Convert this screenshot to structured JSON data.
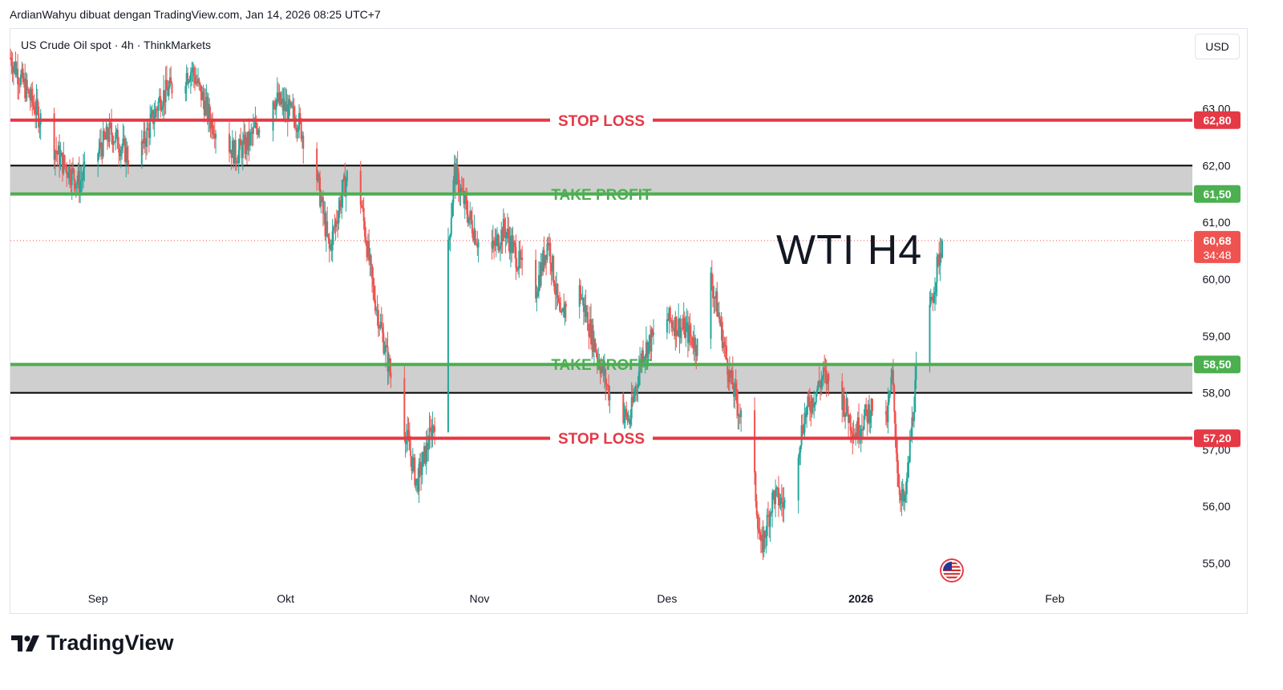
{
  "header": {
    "caption": "ArdianWahyu dibuat dengan TradingView.com, Jan 14, 2026 08:25 UTC+7"
  },
  "chart_header": {
    "symbol": "US Crude Oil spot · 4h · ThinkMarkets",
    "currency": "USD"
  },
  "annotation": {
    "title": "WTI H4"
  },
  "footer": {
    "brand": "TradingView"
  },
  "colors": {
    "up": "#26a69a",
    "down": "#ef5350",
    "stop_loss": "#e53945",
    "take_profit": "#4caf50",
    "zone_fill": "#cfcfcf",
    "zone_border": "#000000"
  },
  "chart_data": {
    "type": "candlestick",
    "xlabels": [
      {
        "label": "Sep",
        "date": "2025-09-01"
      },
      {
        "label": "Okt",
        "date": "2025-10-01"
      },
      {
        "label": "Nov",
        "date": "2025-11-01"
      },
      {
        "label": "Des",
        "date": "2025-12-01"
      },
      {
        "label": "2026",
        "date": "2026-01-01",
        "bold": true
      },
      {
        "label": "Feb",
        "date": "2026-02-01"
      }
    ],
    "yticks": [
      "55,00",
      "56,00",
      "57,00",
      "58,00",
      "59,00",
      "60,00",
      "61,00",
      "62,00",
      "63,00"
    ],
    "ylim": [
      54.55,
      64.0
    ],
    "date_range": [
      "2025-08-18",
      "2026-02-23"
    ],
    "last_price": 60.68,
    "last_price_label": "60,68",
    "countdown": "34:48",
    "grid": false,
    "levels": [
      {
        "name": "STOP LOSS",
        "price": 62.8,
        "label": "62,80",
        "kind": "stop_loss"
      },
      {
        "name": "TAKE PROFIT",
        "price": 61.5,
        "label": "61,50",
        "kind": "take_profit"
      },
      {
        "name": "TAKE PROFIT",
        "price": 58.5,
        "label": "58,50",
        "kind": "take_profit"
      },
      {
        "name": "STOP LOSS",
        "price": 57.2,
        "label": "57,20",
        "kind": "stop_loss"
      }
    ],
    "zones": [
      {
        "top": 62.0,
        "bottom": 61.5
      },
      {
        "top": 58.5,
        "bottom": 58.0
      }
    ],
    "price_path": [
      [
        "2025-08-18",
        63.9
      ],
      [
        "2025-08-22",
        63.0
      ],
      [
        "2025-08-26",
        62.1
      ],
      [
        "2025-08-29",
        61.7
      ],
      [
        "2025-09-03",
        62.6
      ],
      [
        "2025-09-07",
        62.0
      ],
      [
        "2025-09-11",
        63.2
      ],
      [
        "2025-09-16",
        63.7
      ],
      [
        "2025-09-19",
        62.8
      ],
      [
        "2025-09-23",
        62.2
      ],
      [
        "2025-09-25",
        62.4
      ],
      [
        "2025-09-29",
        63.2
      ],
      [
        "2025-10-03",
        62.8
      ],
      [
        "2025-10-06",
        61.8
      ],
      [
        "2025-10-08",
        60.5
      ],
      [
        "2025-10-10",
        61.5
      ],
      [
        "2025-10-12",
        62.2
      ],
      [
        "2025-10-15",
        59.8
      ],
      [
        "2025-10-18",
        58.2
      ],
      [
        "2025-10-20",
        57.4
      ],
      [
        "2025-10-22",
        56.4
      ],
      [
        "2025-10-25",
        57.6
      ],
      [
        "2025-10-27",
        60.5
      ],
      [
        "2025-10-28",
        61.9
      ],
      [
        "2025-10-30",
        61.2
      ],
      [
        "2025-11-02",
        60.3
      ],
      [
        "2025-11-05",
        60.9
      ],
      [
        "2025-11-08",
        60.1
      ],
      [
        "2025-11-10",
        59.8
      ],
      [
        "2025-11-12",
        60.7
      ],
      [
        "2025-11-14",
        59.2
      ],
      [
        "2025-11-16",
        60.2
      ],
      [
        "2025-11-19",
        59.0
      ],
      [
        "2025-11-22",
        57.9
      ],
      [
        "2025-11-25",
        57.5
      ],
      [
        "2025-11-27",
        58.7
      ],
      [
        "2025-12-01",
        59.3
      ],
      [
        "2025-12-04",
        59.1
      ],
      [
        "2025-12-06",
        58.8
      ],
      [
        "2025-12-08",
        60.0
      ],
      [
        "2025-12-09",
        59.5
      ],
      [
        "2025-12-11",
        58.3
      ],
      [
        "2025-12-13",
        57.5
      ],
      [
        "2025-12-15",
        56.4
      ],
      [
        "2025-12-16",
        55.2
      ],
      [
        "2025-12-18",
        56.2
      ],
      [
        "2025-12-20",
        56.0
      ],
      [
        "2025-12-23",
        57.6
      ],
      [
        "2025-12-26",
        58.3
      ],
      [
        "2025-12-29",
        57.9
      ],
      [
        "2025-12-31",
        57.3
      ],
      [
        "2026-01-03",
        57.8
      ],
      [
        "2026-01-05",
        57.4
      ],
      [
        "2026-01-06",
        58.3
      ],
      [
        "2026-01-07",
        56.4
      ],
      [
        "2026-01-08",
        56.0
      ],
      [
        "2026-01-10",
        58.5
      ],
      [
        "2026-01-12",
        59.4
      ],
      [
        "2026-01-13",
        60.1
      ],
      [
        "2026-01-14",
        60.68
      ]
    ]
  }
}
